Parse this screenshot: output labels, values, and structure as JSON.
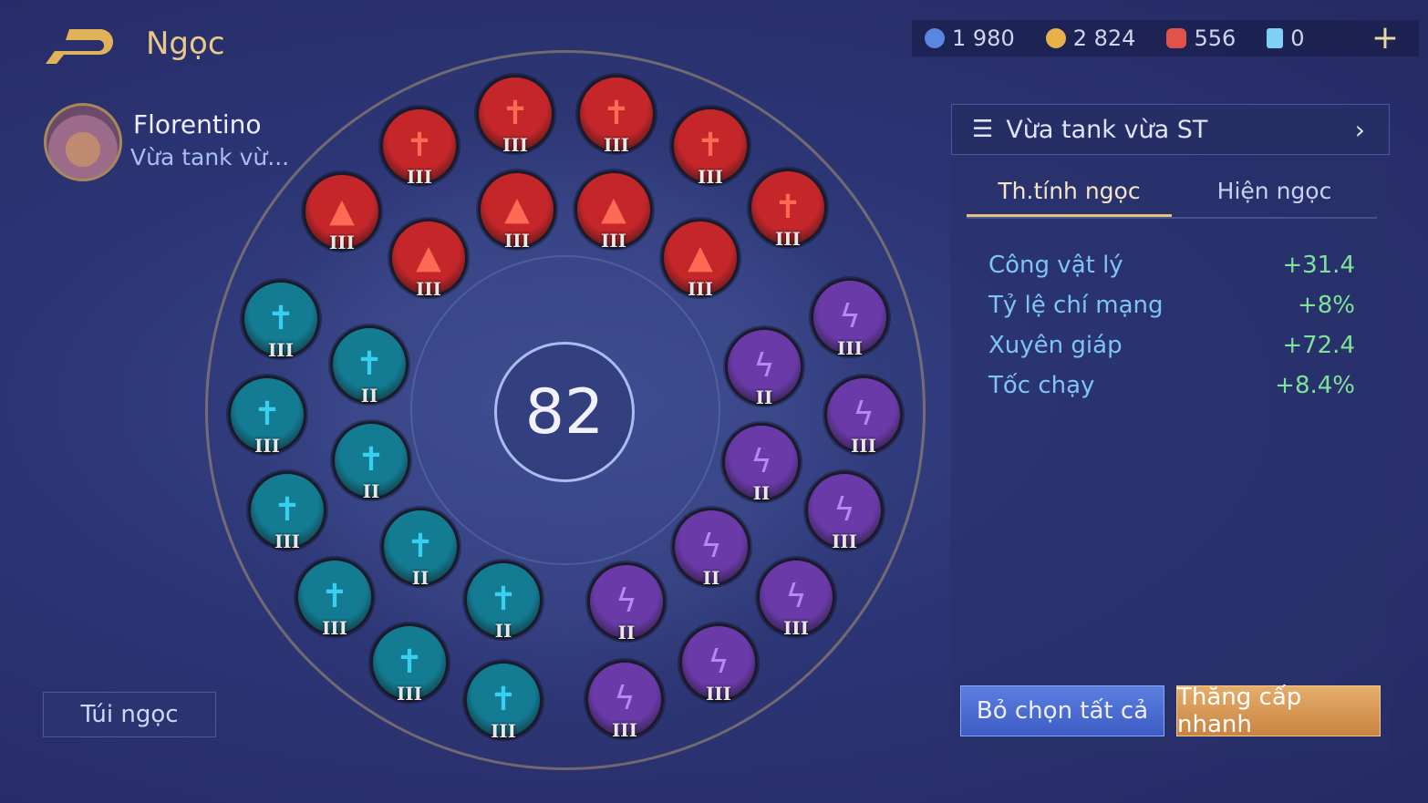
{
  "header": {
    "title": "Ngọc",
    "back_icon": "back-arrow-icon"
  },
  "currencies": [
    {
      "icon": "blue-coin-icon",
      "value": "1 980",
      "color": "#5b86e0"
    },
    {
      "icon": "gold-coin-icon",
      "value": "2 824",
      "color": "#e8b24a"
    },
    {
      "icon": "red-gem-icon",
      "value": "556",
      "color": "#e0524a"
    },
    {
      "icon": "card-icon",
      "value": "0",
      "color": "#7fd0f5"
    }
  ],
  "hero": {
    "name": "Florentino",
    "set_short": "Vừa tank vừ..."
  },
  "bag_button": "Túi ngọc",
  "total_level": "82",
  "gems": [
    {
      "type": "red-sword",
      "tier": "III"
    },
    {
      "type": "red-sword",
      "tier": "III"
    },
    {
      "type": "red-sword",
      "tier": "III"
    },
    {
      "type": "red-sword",
      "tier": "III"
    },
    {
      "type": "red-flame",
      "tier": "III"
    },
    {
      "type": "red-flame",
      "tier": "III"
    },
    {
      "type": "red-flame",
      "tier": "III"
    },
    {
      "type": "red-sword",
      "tier": "III"
    },
    {
      "type": "red-flame",
      "tier": "III"
    },
    {
      "type": "red-flame",
      "tier": "III"
    },
    {
      "type": "blue-sword",
      "tier": "III"
    },
    {
      "type": "blue-sword",
      "tier": "II"
    },
    {
      "type": "blue-sword",
      "tier": "III"
    },
    {
      "type": "blue-sword",
      "tier": "II"
    },
    {
      "type": "blue-sword",
      "tier": "III"
    },
    {
      "type": "blue-sword",
      "tier": "II"
    },
    {
      "type": "blue-sword",
      "tier": "III"
    },
    {
      "type": "blue-sword",
      "tier": "II"
    },
    {
      "type": "blue-sword",
      "tier": "III"
    },
    {
      "type": "blue-sword",
      "tier": "III"
    },
    {
      "type": "purple-bolt",
      "tier": "III"
    },
    {
      "type": "purple-bolt",
      "tier": "II"
    },
    {
      "type": "purple-bolt",
      "tier": "III"
    },
    {
      "type": "purple-bolt",
      "tier": "II"
    },
    {
      "type": "purple-bolt",
      "tier": "III"
    },
    {
      "type": "purple-bolt",
      "tier": "II"
    },
    {
      "type": "purple-bolt",
      "tier": "II"
    },
    {
      "type": "purple-bolt",
      "tier": "III"
    },
    {
      "type": "purple-bolt",
      "tier": "III"
    },
    {
      "type": "purple-bolt",
      "tier": "III"
    }
  ],
  "gem_colors": {
    "red": "#c4262a",
    "blue": "#137b92",
    "purple": "#6a3aa8"
  },
  "panel": {
    "set_name": "Vừa tank vừa ST",
    "tabs": [
      {
        "label": "Th.tính ngọc",
        "active": true
      },
      {
        "label": "Hiện ngọc",
        "active": false
      }
    ],
    "stats": [
      {
        "label": "Công vật lý",
        "value": "+31.4"
      },
      {
        "label": "Tỷ lệ chí mạng",
        "value": "+8%"
      },
      {
        "label": "Xuyên giáp",
        "value": "+72.4"
      },
      {
        "label": "Tốc chạy",
        "value": "+8.4%"
      }
    ],
    "deselect_all": "Bỏ chọn tất cả",
    "quick_upgrade": "Thăng cấp nhanh"
  }
}
